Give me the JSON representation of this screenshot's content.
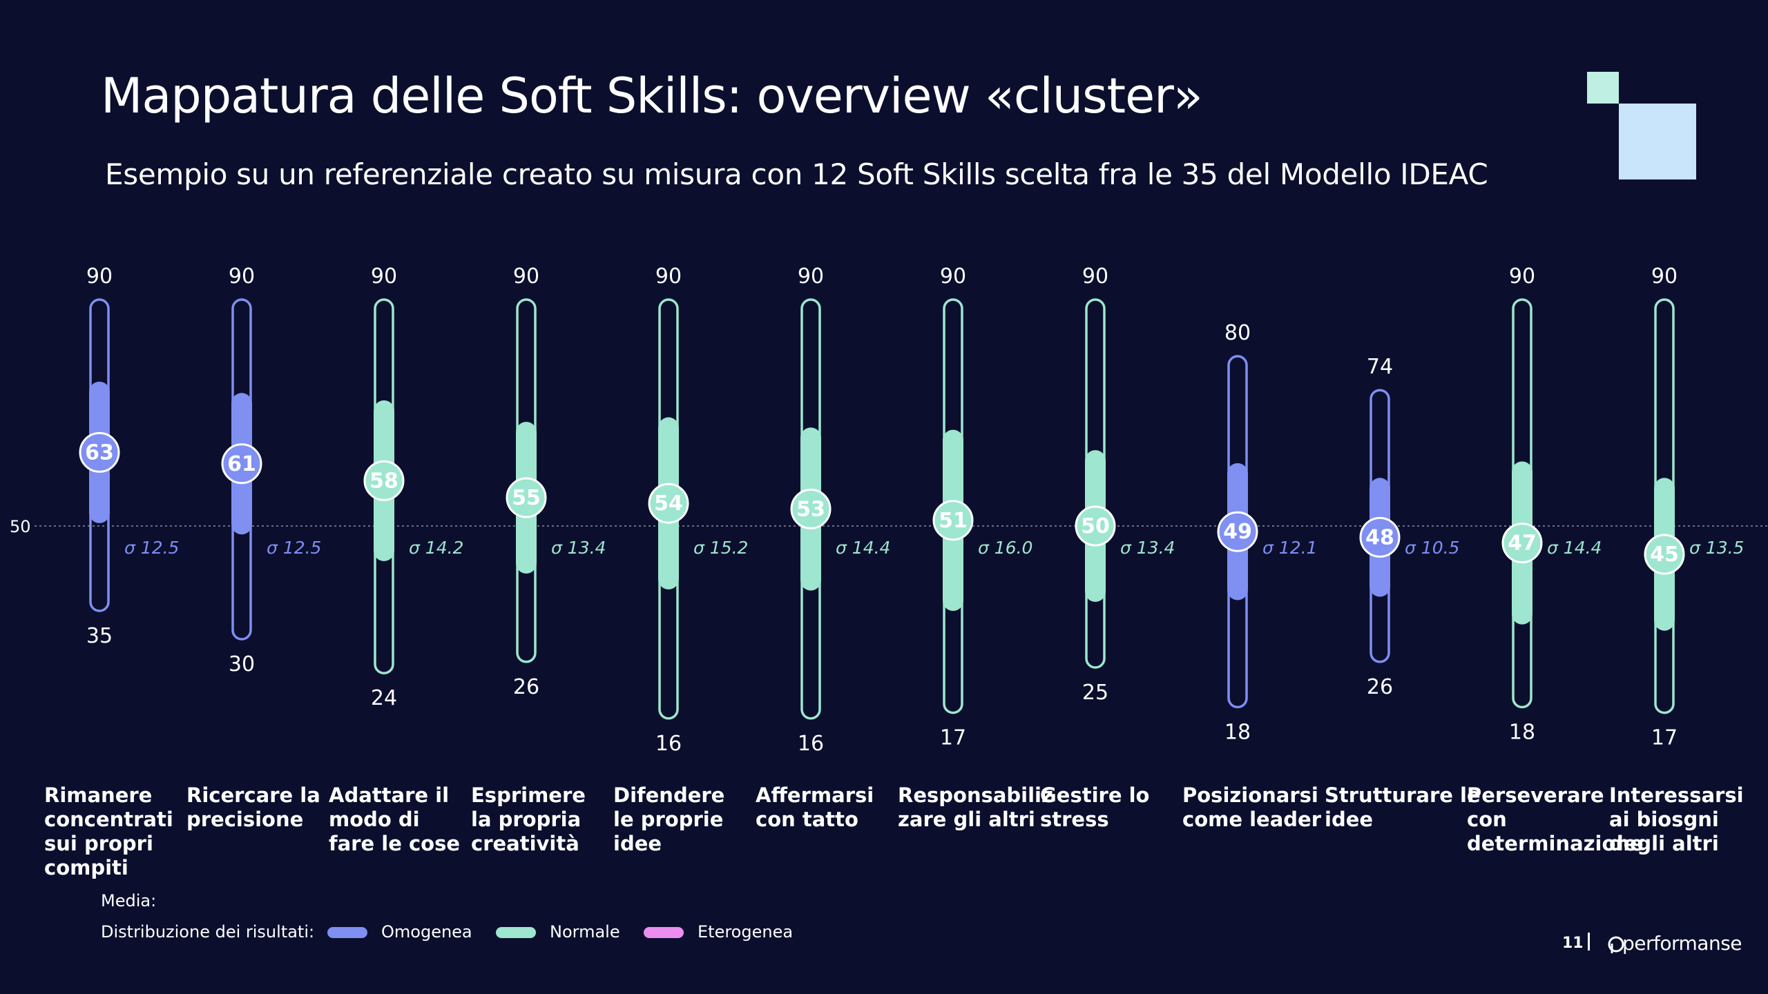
{
  "header": {
    "title": "Mappatura delle Soft Skills: overview «cluster»",
    "subtitle": "Esempio su un referenziale creato su misura con 12 Soft Skills scelta fra le 35 del Modello IDEAC"
  },
  "colors": {
    "background": "#0b0f2d",
    "omogenea": "#7f8ff2",
    "normale": "#9ee6cf",
    "eterogenea": "#ec8ef0",
    "deco_light": "#c8e5fb",
    "deco_mint": "#bfeee2"
  },
  "chart_data": {
    "type": "range",
    "title": "Mappatura delle Soft Skills: overview «cluster»",
    "reference_line": {
      "value": 50,
      "label": "50"
    },
    "ylim": [
      0,
      100
    ],
    "sigma_prefix": "σ",
    "categories": [
      "Rimanere concentrati sui propri compiti",
      "Ricercare la precisione",
      "Adattare il modo di fare le cose",
      "Esprimere la propria creatività",
      "Difendere le proprie idee",
      "Affermarsi con tatto",
      "Responsabilizzare gli altri",
      "Gestire lo stress",
      "Posizionarsi come leader",
      "Strutturare le idee",
      "Perseverare con determinazione",
      "Interessarsi ai biosgni degli altri"
    ],
    "series": [
      {
        "label": "Rimanere concentrati sui propri compiti",
        "max": 90,
        "min": 35,
        "mean": 63,
        "sigma": "12.5",
        "distribution": "Omogenea"
      },
      {
        "label": "Ricercare la precisione",
        "max": 90,
        "min": 30,
        "mean": 61,
        "sigma": "12.5",
        "distribution": "Omogenea"
      },
      {
        "label": "Adattare il modo di fare le cose",
        "max": 90,
        "min": 24,
        "mean": 58,
        "sigma": "14.2",
        "distribution": "Normale"
      },
      {
        "label": "Esprimere la propria creatività",
        "max": 90,
        "min": 26,
        "mean": 55,
        "sigma": "13.4",
        "distribution": "Normale"
      },
      {
        "label": "Difendere le proprie idee",
        "max": 90,
        "min": 16,
        "mean": 54,
        "sigma": "15.2",
        "distribution": "Normale"
      },
      {
        "label": "Affermarsi con tatto",
        "max": 90,
        "min": 16,
        "mean": 53,
        "sigma": "14.4",
        "distribution": "Normale"
      },
      {
        "label": "Responsabilizzare gli altri",
        "max": 90,
        "min": 17,
        "mean": 51,
        "sigma": "16.0",
        "distribution": "Normale"
      },
      {
        "label": "Gestire lo stress",
        "max": 90,
        "min": 25,
        "mean": 50,
        "sigma": "13.4",
        "distribution": "Normale"
      },
      {
        "label": "Posizionarsi come leader",
        "max": 80,
        "min": 18,
        "mean": 49,
        "sigma": "12.1",
        "distribution": "Omogenea"
      },
      {
        "label": "Strutturare le idee",
        "max": 74,
        "min": 26,
        "mean": 48,
        "sigma": "10.5",
        "distribution": "Omogenea"
      },
      {
        "label": "Perseverare con determinazione",
        "max": 90,
        "min": 18,
        "mean": 47,
        "sigma": "14.4",
        "distribution": "Normale"
      },
      {
        "label": "Interessarsi ai biosgni degli altri",
        "max": 90,
        "min": 17,
        "mean": 45,
        "sigma": "13.5",
        "distribution": "Normale"
      }
    ],
    "label_lines": [
      [
        "Rimanere",
        "concentrati",
        "sui propri",
        "compiti"
      ],
      [
        "Ricercare la",
        "precisione"
      ],
      [
        "Adattare il",
        "modo di",
        "fare le cose"
      ],
      [
        "Esprimere",
        "la propria",
        "creatività"
      ],
      [
        "Difendere",
        "le proprie",
        "idee"
      ],
      [
        "Affermarsi",
        "con tatto"
      ],
      [
        "Responsabiliz",
        "zare gli altri"
      ],
      [
        "Gestire lo",
        "stress"
      ],
      [
        "Posizionarsi",
        "come leader"
      ],
      [
        "Strutturare le",
        "idee"
      ],
      [
        "Perseverare",
        "con",
        "determinazione"
      ],
      [
        "Interessarsi",
        "ai biosgni",
        "degli altri"
      ]
    ]
  },
  "legend": {
    "media_label": "Media:",
    "distribution_label": "Distribuzione dei risultati:",
    "items": [
      {
        "label": "Omogenea",
        "color": "#7f8ff2"
      },
      {
        "label": "Normale",
        "color": "#9ee6cf"
      },
      {
        "label": "Eterogenea",
        "color": "#ec8ef0"
      }
    ]
  },
  "footer": {
    "page_number": "11",
    "brand": "performanse"
  }
}
